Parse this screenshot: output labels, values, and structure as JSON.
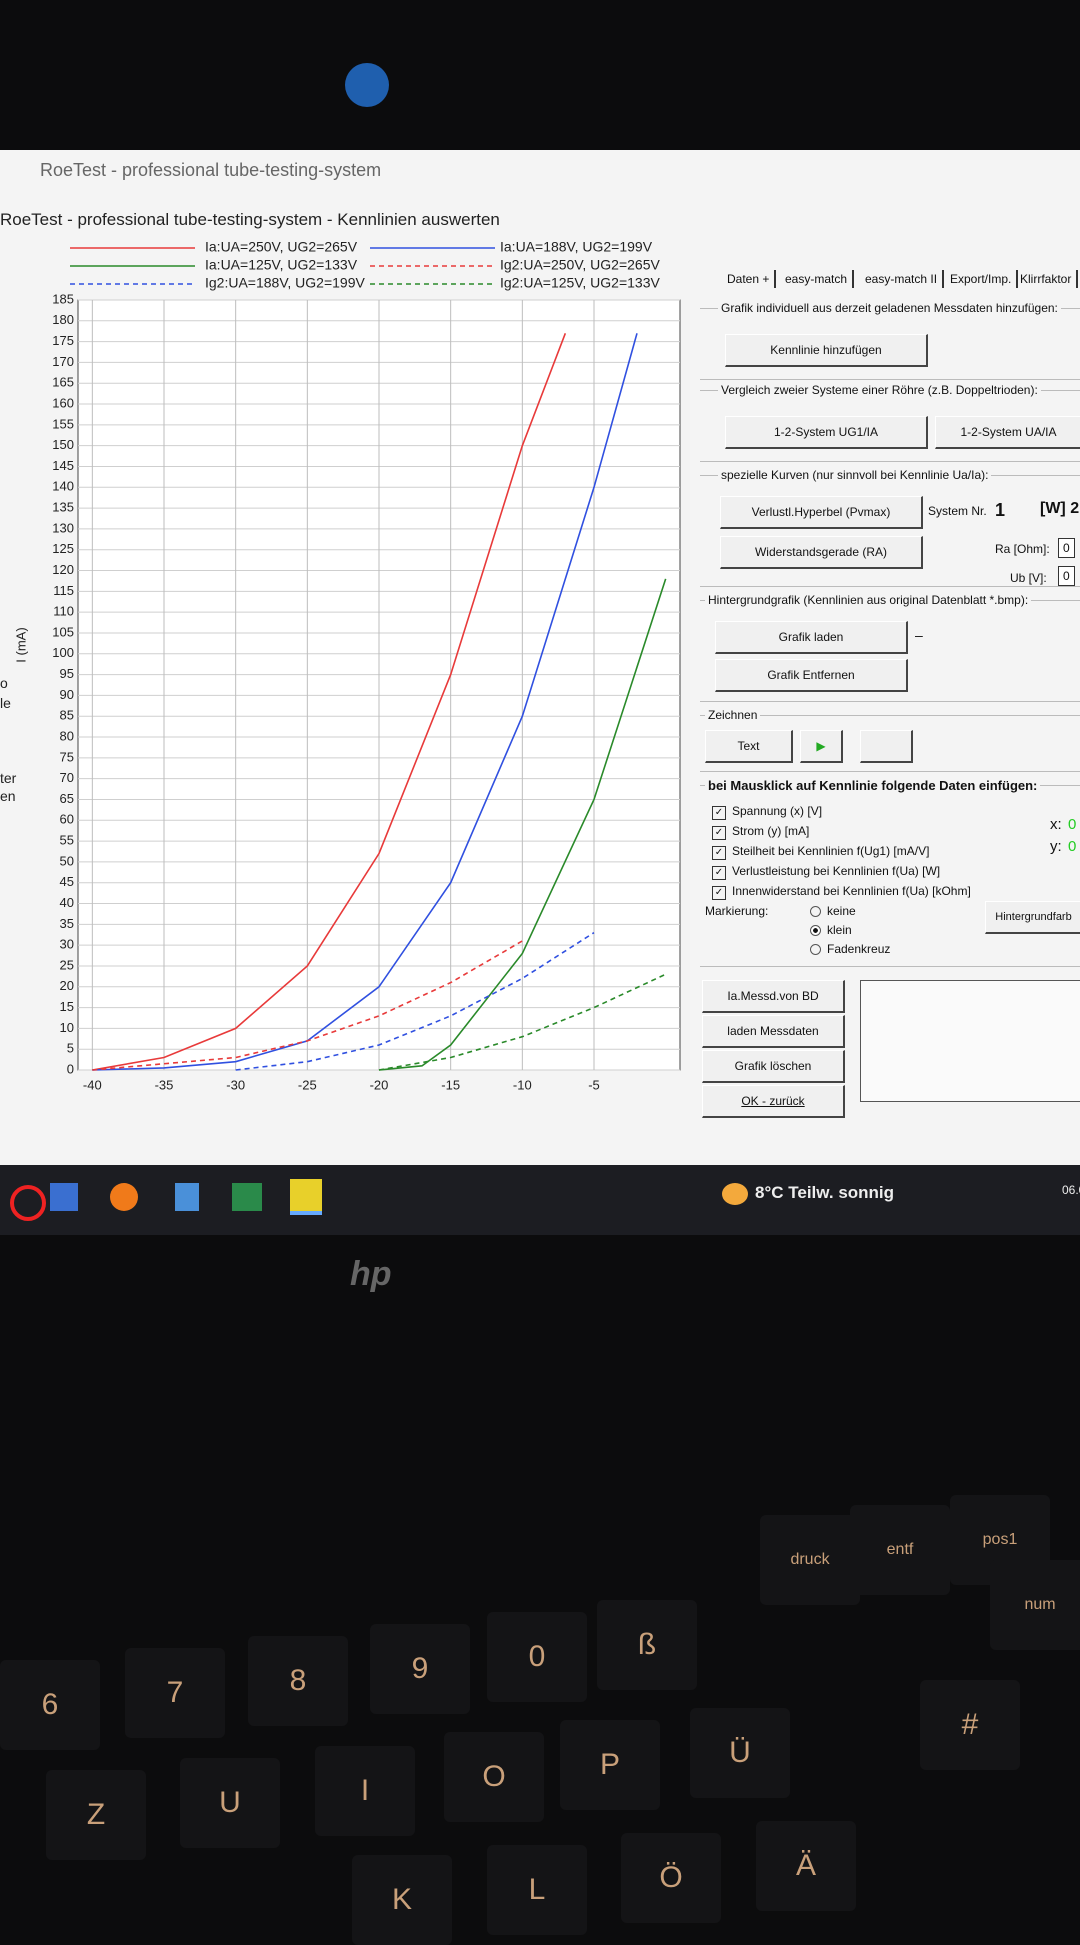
{
  "window": {
    "app_title": "RoeTest - professional tube-testing-system",
    "title": "RoeTest - professional tube-testing-system - Kennlinien auswerten",
    "left_fragments": [
      "o",
      "le",
      "ter",
      "en"
    ]
  },
  "chart": {
    "type": "line",
    "y_label": "I (mA)",
    "xlim": [
      -41,
      1
    ],
    "xticks": [
      -40,
      -35,
      -30,
      -25,
      -20,
      -15,
      -10,
      -5
    ],
    "ylim": [
      0,
      185
    ],
    "yticks": [
      0,
      5,
      10,
      15,
      20,
      25,
      30,
      35,
      40,
      45,
      50,
      55,
      60,
      65,
      70,
      75,
      80,
      85,
      90,
      95,
      100,
      105,
      110,
      115,
      120,
      125,
      130,
      135,
      140,
      145,
      150,
      155,
      160,
      165,
      170,
      175,
      180,
      185
    ],
    "grid": true,
    "series": [
      {
        "name": "Ia:UA=250V, UG2=265V",
        "color": "#e83a3a",
        "dashed": false,
        "x": [
          -40,
          -35,
          -30,
          -25,
          -20,
          -15,
          -10,
          -7
        ],
        "values": [
          0,
          3,
          10,
          25,
          52,
          95,
          150,
          177
        ]
      },
      {
        "name": "Ia:UA=125V, UG2=133V",
        "color": "#2a8a2a",
        "dashed": false,
        "x": [
          -20,
          -17,
          -15,
          -10,
          -5,
          0
        ],
        "values": [
          0,
          1,
          6,
          28,
          65,
          118
        ]
      },
      {
        "name": "Ig2:UA=188V, UG2=199V",
        "color": "#3050e0",
        "dashed": true,
        "x": [
          -30,
          -25,
          -20,
          -15,
          -10,
          -5
        ],
        "values": [
          0,
          2,
          6,
          13,
          22,
          33
        ]
      },
      {
        "name": "Ia:UA=188V, UG2=199V",
        "color": "#3050e0",
        "dashed": false,
        "x": [
          -40,
          -35,
          -30,
          -25,
          -20,
          -15,
          -10,
          -5,
          -2
        ],
        "values": [
          0,
          0.5,
          2,
          7,
          20,
          45,
          85,
          140,
          177
        ]
      },
      {
        "name": "Ig2:UA=250V, UG2=265V",
        "color": "#e83a3a",
        "dashed": true,
        "x": [
          -40,
          -30,
          -25,
          -20,
          -15,
          -10
        ],
        "values": [
          0,
          3,
          7,
          13,
          21,
          31
        ]
      },
      {
        "name": "Ig2:UA=125V, UG2=133V",
        "color": "#2a8a2a",
        "dashed": true,
        "x": [
          -20,
          -15,
          -10,
          -5,
          0
        ],
        "values": [
          0,
          3,
          8,
          15,
          23
        ]
      }
    ]
  },
  "panel": {
    "tabs": [
      "Daten +",
      "easy-match",
      "easy-match II",
      "Export/Imp.",
      "Klirrfaktor"
    ],
    "add_group": {
      "label": "Grafik individuell aus derzeit geladenen Messdaten hinzufügen:",
      "button": "Kennlinie hinzufügen"
    },
    "compare_group": {
      "label": "Vergleich zweier Systeme einer Röhre (z.B. Doppeltrioden):",
      "buttons": [
        "1-2-System UG1/IA",
        "1-2-System UA/IA"
      ]
    },
    "special_group": {
      "label": "spezielle Kurven (nur sinnvoll bei Kennlinie Ua/Ia):",
      "buttons": [
        "Verlustl.Hyperbel (Pvmax)",
        "Widerstandsgerade (RA)"
      ],
      "system_label": "System Nr.",
      "system_value": "1",
      "watt_label": "[W] 2",
      "ra_label": "Ra [Ohm]:",
      "ra_value": "0",
      "ub_label": "Ub [V]:",
      "ub_value": "0"
    },
    "background_group": {
      "label": "Hintergrundgrafik (Kennlinien aus original Datenblatt *.bmp):",
      "buttons": [
        "Grafik laden",
        "Grafik Entfernen"
      ],
      "dash": "–"
    },
    "draw_group": {
      "label": "Zeichnen",
      "button": "Text"
    },
    "click_group": {
      "label": "bei Mausklick auf Kennlinie folgende Daten einfügen:",
      "checkboxes": [
        "Spannung (x) [V]",
        "Strom (y) [mA]",
        "Steilheit bei Kennlinien f(Ug1) [mA/V]",
        "Verlustleistung bei Kennlinien f(Ua) [W]",
        "Innenwiderstand bei Kennlinien f(Ua) [kOhm]"
      ],
      "marking_label": "Markierung:",
      "marking_options": [
        "keine",
        "klein",
        "Fadenkreuz"
      ],
      "x_label": "x:",
      "x_value": "0",
      "y_label": "y:",
      "y_value": "0",
      "background_color_button": "Hintergrundfarb"
    },
    "actions": [
      "Ia.Messd.von BD",
      "laden Messdaten",
      "Grafik löschen",
      "OK - zurück"
    ]
  },
  "taskbar": {
    "weather": "8°C Teilw. sonnig",
    "date": "06.0"
  },
  "laptop": {
    "brand": "hp"
  },
  "keyboard": {
    "keys": [
      "druck",
      "entf",
      "pos1",
      "num",
      "6",
      "7",
      "8",
      "9",
      "0",
      "ß",
      "Z",
      "U",
      "I",
      "O",
      "P",
      "Ü",
      "#",
      "K",
      "L",
      "Ö",
      "Ä"
    ]
  }
}
